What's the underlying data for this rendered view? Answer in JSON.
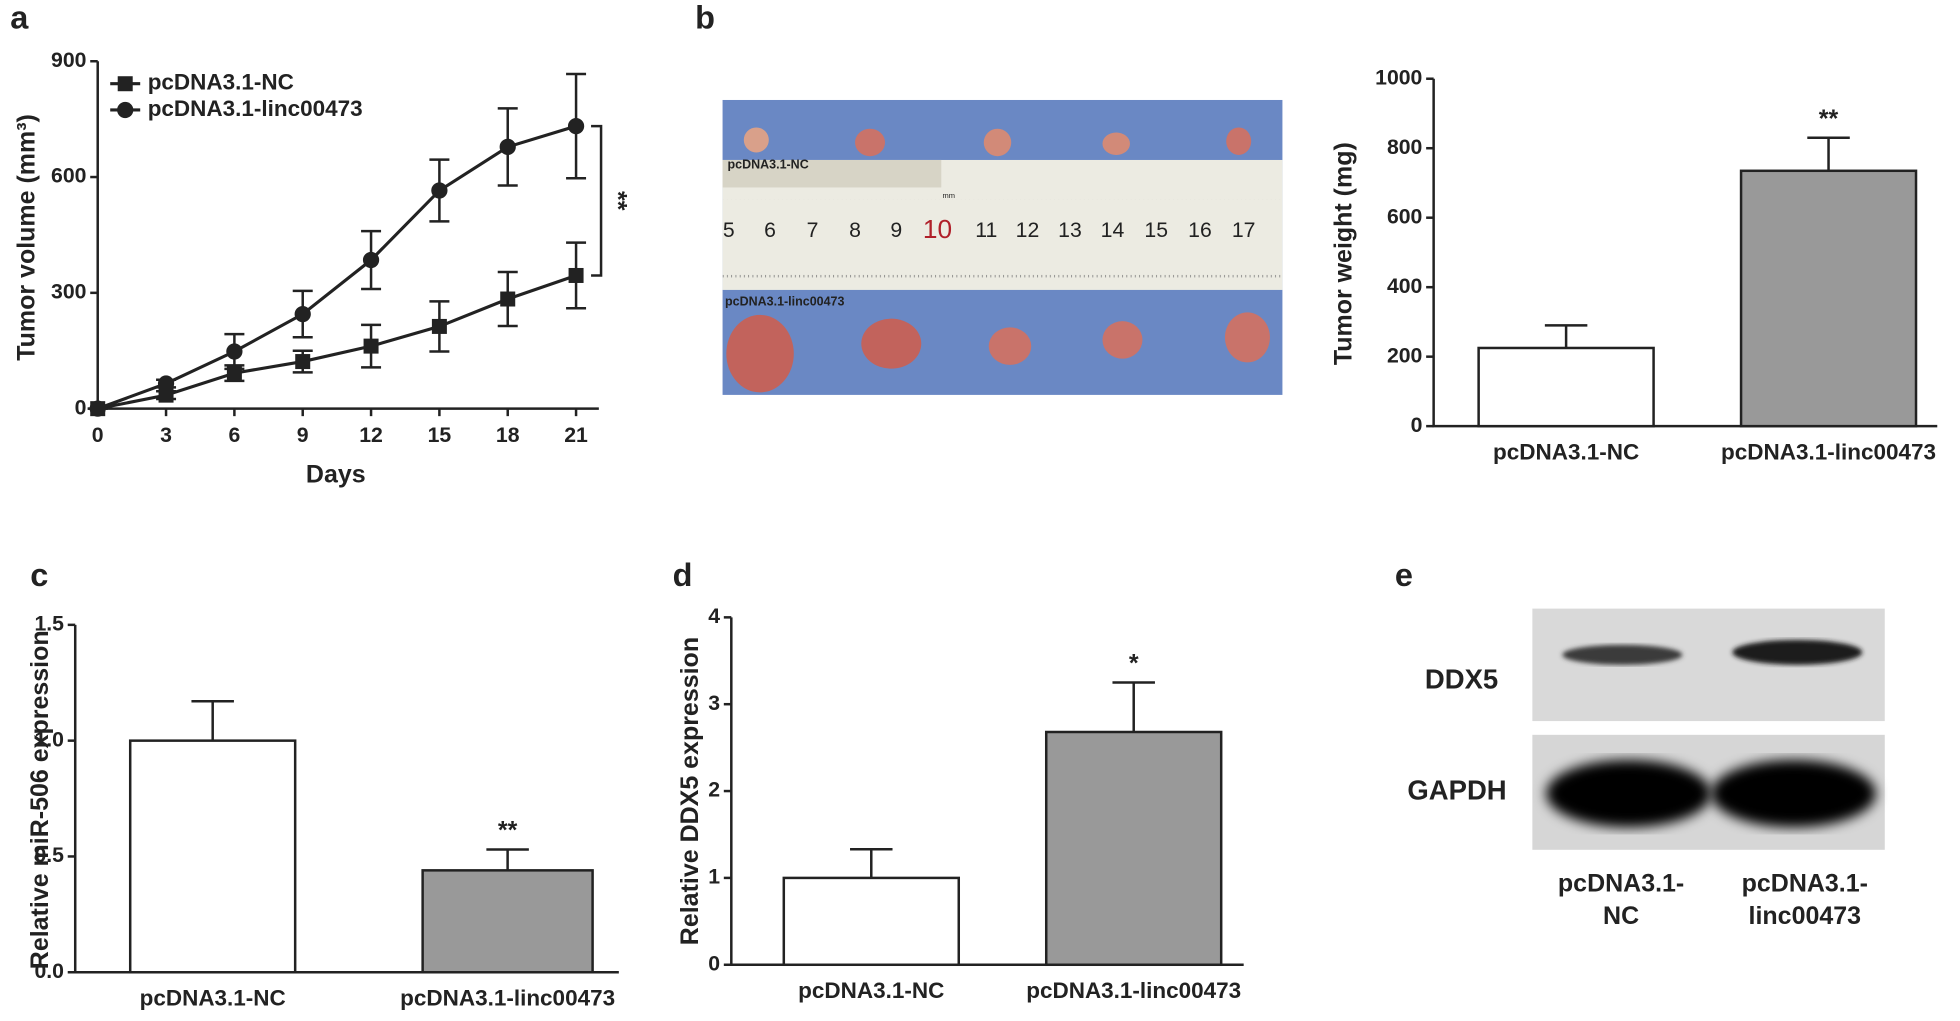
{
  "panel_labels": [
    "a",
    "b",
    "c",
    "d",
    "e"
  ],
  "chart_data": [
    {
      "type": "line",
      "x_label": "Days",
      "y_label": "Tumor volume (mm³)",
      "x": [
        0,
        3,
        6,
        9,
        12,
        15,
        18,
        21
      ],
      "xlim": [
        0,
        22
      ],
      "xticks": [
        0,
        3,
        6,
        9,
        12,
        15,
        18,
        21
      ],
      "ylim": [
        0,
        900
      ],
      "yticks": [
        0,
        300,
        600,
        900
      ],
      "legend": "upper left",
      "annotation": "**",
      "series": [
        {
          "name": "pcDNA3.1-NC",
          "color": "#222222",
          "marker": "square",
          "values": [
            0,
            35,
            92,
            122,
            162,
            213,
            284,
            345
          ],
          "errors": [
            0,
            10,
            20,
            28,
            55,
            65,
            70,
            85
          ]
        },
        {
          "name": "pcDNA3.1-linc00473",
          "color": "#222222",
          "marker": "circle",
          "values": [
            0,
            65,
            148,
            245,
            385,
            565,
            678,
            732
          ],
          "errors": [
            0,
            10,
            45,
            60,
            75,
            80,
            100,
            135
          ]
        }
      ]
    },
    {
      "type": "bar",
      "y_label": "Tumor weight (mg)",
      "categories": [
        "pcDNA3.1-NC",
        "pcDNA3.1-linc00473"
      ],
      "values": [
        225,
        735
      ],
      "errors": [
        65,
        95
      ],
      "colors": [
        "#ffffff",
        "#999999"
      ],
      "ylim": [
        0,
        1000
      ],
      "yticks": [
        0,
        200,
        400,
        600,
        800,
        1000
      ],
      "annotation": "**"
    },
    {
      "type": "bar",
      "y_label": "Relative miR-506 expression",
      "categories": [
        "pcDNA3.1-NC",
        "pcDNA3.1-linc00473"
      ],
      "values": [
        1.0,
        0.44
      ],
      "errors": [
        0.17,
        0.09
      ],
      "colors": [
        "#ffffff",
        "#999999"
      ],
      "ylim": [
        0,
        1.5
      ],
      "yticks": [
        {
          "value": 0,
          "label": "0.0"
        },
        {
          "value": 0.5,
          "label": "0.5"
        },
        {
          "value": 1,
          "label": "1.0"
        },
        {
          "value": 1.5,
          "label": "1.5"
        }
      ],
      "annotation": "**"
    },
    {
      "type": "bar",
      "y_label": "Relative DDX5 expression",
      "categories": [
        "pcDNA3.1-NC",
        "pcDNA3.1-linc00473"
      ],
      "values": [
        1.0,
        2.68
      ],
      "errors": [
        0.33,
        0.57
      ],
      "colors": [
        "#ffffff",
        "#999999"
      ],
      "ylim": [
        0,
        4
      ],
      "yticks": [
        0,
        1,
        2,
        3,
        4
      ],
      "annotation": "*"
    }
  ],
  "photo": {
    "labels": [
      "pcDNA3.1-NC",
      "pcDNA3.1-linc00473"
    ],
    "unit": "mm",
    "ruler_labels": [
      "5",
      "6",
      "7",
      "8",
      "9",
      "10",
      "11",
      "12",
      "13",
      "14",
      "15",
      "16",
      "17"
    ]
  },
  "blot": {
    "rows": [
      "DDX5",
      "GAPDH"
    ],
    "lanes": [
      [
        "pcDNA3.1-",
        "NC"
      ],
      [
        "pcDNA3.1-",
        "linc00473"
      ]
    ]
  }
}
